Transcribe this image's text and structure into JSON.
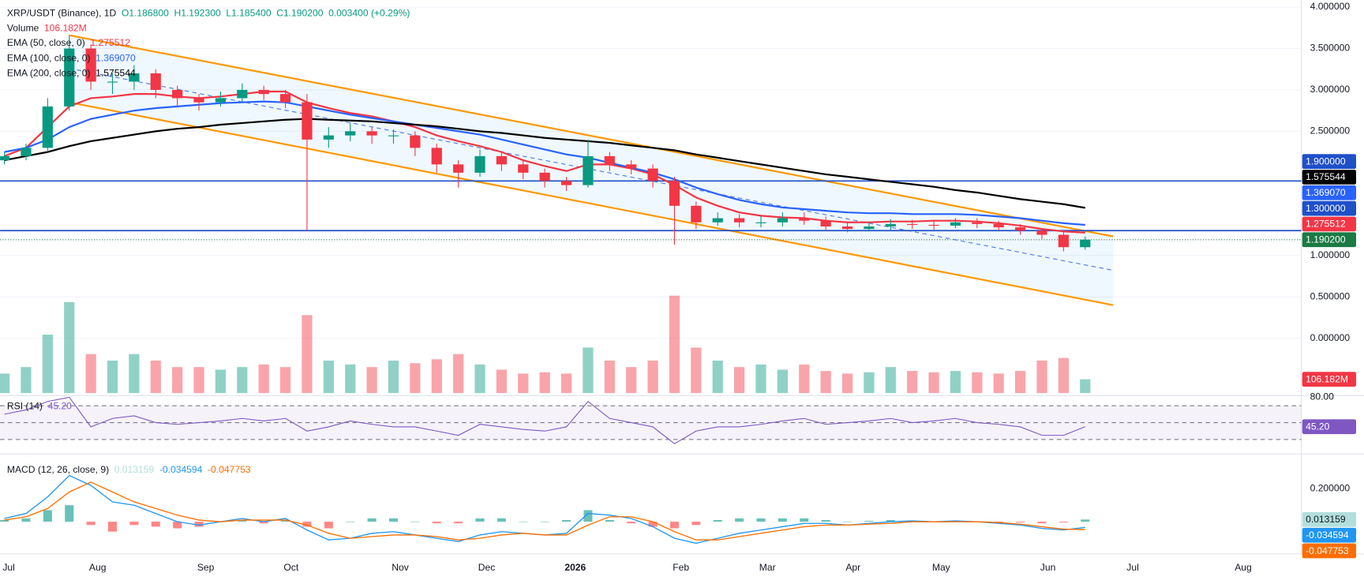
{
  "chart_data": [
    {
      "type": "candlestick",
      "title": "XRP/USDT (Binance), 1D",
      "ohlc_labels": [
        "O1.186800",
        "H1.192300",
        "L1.185400",
        "C1.190200"
      ],
      "change_label": "0.003400 (+0.29%)",
      "categories": [
        "Jul",
        null,
        null,
        null,
        "Aug",
        null,
        null,
        null,
        null,
        "Sep",
        null,
        null,
        null,
        "Oct",
        null,
        null,
        null,
        null,
        "Nov",
        null,
        null,
        null,
        "Dec",
        null,
        null,
        null,
        "2026",
        null,
        null,
        null,
        null,
        "Feb",
        null,
        null,
        null,
        "Mar",
        null,
        null,
        null,
        "Apr",
        null,
        null,
        null,
        "May",
        null,
        null,
        null,
        null,
        "Jun",
        null,
        null,
        null,
        "Jul",
        null,
        null,
        null,
        null,
        "Aug"
      ],
      "open": [
        2.15,
        2.2,
        2.3,
        2.8,
        3.5,
        3.1,
        3.1,
        3.2,
        3.0,
        2.9,
        2.85,
        2.9,
        3.0,
        2.95,
        2.85,
        2.4,
        2.45,
        2.5,
        2.45,
        2.45,
        2.3,
        2.1,
        2.0,
        2.2,
        2.1,
        2.0,
        1.9,
        1.85,
        2.2,
        2.1,
        2.05,
        1.9,
        1.6,
        1.4,
        1.45,
        1.4,
        1.4,
        1.45,
        1.42,
        1.35,
        1.32,
        1.35,
        1.38,
        1.37,
        1.36,
        1.4,
        1.38,
        1.34,
        1.3,
        1.25,
        1.1,
        null,
        null,
        null,
        null,
        null,
        null,
        null
      ],
      "high": [
        2.25,
        2.35,
        2.9,
        3.66,
        3.55,
        3.2,
        3.3,
        3.25,
        3.05,
        2.95,
        2.98,
        3.08,
        3.05,
        3.0,
        2.95,
        2.55,
        2.6,
        2.55,
        2.52,
        2.5,
        2.35,
        2.15,
        2.28,
        2.25,
        2.15,
        2.05,
        1.95,
        2.4,
        2.25,
        2.15,
        2.1,
        1.95,
        1.65,
        1.52,
        1.5,
        1.48,
        1.52,
        1.52,
        1.47,
        1.4,
        1.4,
        1.44,
        1.43,
        1.42,
        1.45,
        1.45,
        1.42,
        1.38,
        1.33,
        1.28,
        1.23,
        null,
        null,
        null,
        null,
        null,
        null,
        null
      ],
      "low": [
        2.1,
        2.15,
        2.25,
        2.75,
        3.0,
        2.95,
        3.0,
        2.9,
        2.8,
        2.75,
        2.8,
        2.85,
        2.88,
        2.78,
        1.3,
        2.3,
        2.38,
        2.35,
        2.35,
        2.2,
        2.0,
        1.82,
        1.95,
        2.02,
        1.92,
        1.82,
        1.78,
        1.82,
        2.02,
        1.98,
        1.82,
        1.13,
        1.32,
        1.36,
        1.34,
        1.34,
        1.35,
        1.37,
        1.3,
        1.28,
        1.29,
        1.31,
        1.32,
        1.31,
        1.33,
        1.33,
        1.3,
        1.25,
        1.2,
        1.05,
        1.07,
        null,
        null,
        null,
        null,
        null,
        null,
        null
      ],
      "close": [
        2.2,
        2.3,
        2.8,
        3.5,
        3.1,
        3.1,
        3.2,
        3.0,
        2.9,
        2.85,
        2.9,
        3.0,
        2.95,
        2.85,
        2.4,
        2.45,
        2.5,
        2.45,
        2.45,
        2.3,
        2.1,
        2.0,
        2.2,
        2.1,
        2.0,
        1.9,
        1.85,
        2.2,
        2.1,
        2.05,
        1.9,
        1.6,
        1.4,
        1.45,
        1.4,
        1.4,
        1.45,
        1.42,
        1.35,
        1.32,
        1.35,
        1.38,
        1.37,
        1.36,
        1.4,
        1.38,
        1.34,
        1.3,
        1.25,
        1.1,
        1.1902,
        null,
        null,
        null,
        null,
        null,
        null,
        null
      ],
      "last_label": "1.190200",
      "last_color": "#1b7a45",
      "up_color": "#089981",
      "down_color": "#f23645",
      "series": [
        {
          "name": "EMA (50, close, 0)",
          "color": "#f23645",
          "last_label": "1.275512",
          "values": [
            2.2,
            2.3,
            2.55,
            2.8,
            2.9,
            2.92,
            2.95,
            2.95,
            2.92,
            2.9,
            2.92,
            2.95,
            2.98,
            2.98,
            2.85,
            2.78,
            2.72,
            2.68,
            2.62,
            2.55,
            2.45,
            2.38,
            2.32,
            2.25,
            2.15,
            2.08,
            2.02,
            2.1,
            2.1,
            2.05,
            1.98,
            1.85,
            1.7,
            1.6,
            1.52,
            1.48,
            1.46,
            1.45,
            1.42,
            1.4,
            1.4,
            1.41,
            1.41,
            1.42,
            1.42,
            1.41,
            1.39,
            1.36,
            1.32,
            1.29,
            1.275512,
            null,
            null,
            null,
            null,
            null,
            null,
            null
          ]
        },
        {
          "name": "EMA (100, close, 0)",
          "color": "#2962ff",
          "last_label": "1.369070",
          "values": [
            2.25,
            2.3,
            2.4,
            2.55,
            2.65,
            2.7,
            2.75,
            2.78,
            2.8,
            2.82,
            2.84,
            2.85,
            2.86,
            2.85,
            2.8,
            2.75,
            2.7,
            2.66,
            2.62,
            2.58,
            2.54,
            2.5,
            2.46,
            2.4,
            2.34,
            2.28,
            2.22,
            2.18,
            2.12,
            2.06,
            2.0,
            1.92,
            1.82,
            1.74,
            1.67,
            1.62,
            1.58,
            1.56,
            1.54,
            1.52,
            1.51,
            1.51,
            1.5,
            1.5,
            1.5,
            1.49,
            1.47,
            1.45,
            1.42,
            1.39,
            1.36907,
            null,
            null,
            null,
            null,
            null,
            null,
            null
          ]
        },
        {
          "name": "EMA (200, close, 0)",
          "color": "#000000",
          "last_label": "1.575544",
          "values": [
            2.15,
            2.2,
            2.25,
            2.32,
            2.38,
            2.42,
            2.46,
            2.5,
            2.53,
            2.55,
            2.58,
            2.6,
            2.62,
            2.64,
            2.65,
            2.64,
            2.63,
            2.62,
            2.6,
            2.58,
            2.56,
            2.53,
            2.5,
            2.48,
            2.45,
            2.42,
            2.4,
            2.38,
            2.36,
            2.33,
            2.3,
            2.27,
            2.22,
            2.18,
            2.14,
            2.1,
            2.06,
            2.02,
            1.98,
            1.95,
            1.92,
            1.89,
            1.86,
            1.83,
            1.79,
            1.76,
            1.72,
            1.68,
            1.65,
            1.62,
            1.575544,
            null,
            null,
            null,
            null,
            null,
            null,
            null
          ]
        }
      ],
      "hlines": [
        {
          "value": 1.9,
          "label": "1.900000"
        },
        {
          "value": 1.3,
          "label": "1.300000"
        }
      ],
      "hline_color": "#1e50c8",
      "channel": {
        "upper": [
          3.66,
          1.23
        ],
        "middle": [
          3.26,
          0.82
        ],
        "lower": [
          2.85,
          0.4
        ],
        "color": "#ff9800",
        "middle_color": "#4a78e0"
      },
      "ylim": [
        -0.662,
        4.086
      ],
      "yticks": [
        {
          "value": 4,
          "label": "4.000000"
        },
        {
          "value": 3.5,
          "label": "3.500000"
        },
        {
          "value": 3,
          "label": "3.000000"
        },
        {
          "value": 2.5,
          "label": "2.500000"
        },
        {
          "value": 1,
          "label": "1.000000"
        },
        {
          "value": 0.5,
          "label": "0.500000"
        },
        {
          "value": 0,
          "label": "0.000000"
        }
      ]
    },
    {
      "type": "bar",
      "title": "Volume",
      "last_label": "106.182M",
      "ylim": [
        0,
        750
      ],
      "values": [
        150,
        200,
        450,
        700,
        300,
        250,
        300,
        250,
        200,
        200,
        180,
        200,
        220,
        200,
        600,
        250,
        220,
        200,
        250,
        230,
        260,
        300,
        220,
        180,
        150,
        160,
        150,
        350,
        250,
        200,
        250,
        750,
        350,
        250,
        200,
        220,
        180,
        220,
        170,
        150,
        160,
        200,
        170,
        160,
        170,
        160,
        150,
        170,
        250,
        270,
        106.182,
        null,
        null,
        null,
        null,
        null,
        null,
        null
      ]
    },
    {
      "type": "line",
      "title": "RSI (14)",
      "last_label": "45.20",
      "color": "#7e57c2",
      "ylim": [
        15,
        84
      ],
      "yticks": [
        {
          "value": 80,
          "label": "80.00"
        }
      ],
      "bands": [
        70,
        50,
        30
      ],
      "values": [
        60,
        65,
        75,
        80,
        45,
        55,
        58,
        50,
        48,
        50,
        52,
        55,
        52,
        55,
        40,
        45,
        52,
        48,
        45,
        45,
        40,
        35,
        48,
        45,
        42,
        40,
        45,
        75,
        55,
        50,
        45,
        25,
        40,
        45,
        45,
        48,
        52,
        55,
        48,
        50,
        52,
        55,
        50,
        52,
        55,
        50,
        48,
        45,
        35,
        35,
        45.2,
        null,
        null,
        null,
        null,
        null,
        null,
        null
      ]
    },
    {
      "type": "macd",
      "title": "MACD (12, 26, close, 9)",
      "ylim": [
        -0.195,
        0.384
      ],
      "yticks": [
        {
          "value": 0.2,
          "label": "0.200000"
        }
      ],
      "histogram": {
        "label": "0.013159",
        "color_up": "#26a69a",
        "color_down": "#ff5252",
        "label_color": "#b2dfdb",
        "values": [
          0.01,
          0.02,
          0.07,
          0.1,
          -0.02,
          -0.06,
          -0.02,
          -0.03,
          -0.04,
          -0.03,
          0,
          0.01,
          -0.01,
          0.01,
          -0.03,
          -0.04,
          0,
          0.02,
          0.02,
          0,
          -0.01,
          -0.01,
          0.02,
          0.02,
          0,
          0,
          0.01,
          0.07,
          0.01,
          -0.01,
          -0.03,
          -0.04,
          -0.02,
          0.01,
          0.02,
          0.02,
          0.02,
          0.02,
          0.01,
          0,
          0.005,
          0.01,
          0.005,
          0,
          0.005,
          0,
          -0.005,
          -0.005,
          -0.01,
          -0.005,
          0.013159,
          null,
          null,
          null,
          null,
          null,
          null,
          null
        ]
      },
      "series": [
        {
          "color": "#2196f3",
          "last_label": "-0.034594",
          "values": [
            0.02,
            0.05,
            0.15,
            0.28,
            0.22,
            0.12,
            0.1,
            0.05,
            0.0,
            -0.02,
            0.0,
            0.02,
            0.0,
            0.02,
            -0.05,
            -0.11,
            -0.1,
            -0.07,
            -0.06,
            -0.08,
            -0.1,
            -0.12,
            -0.08,
            -0.06,
            -0.07,
            -0.08,
            -0.07,
            0.05,
            0.04,
            0.02,
            -0.03,
            -0.1,
            -0.13,
            -0.1,
            -0.07,
            -0.05,
            -0.03,
            -0.01,
            -0.01,
            -0.02,
            -0.01,
            0.0,
            0.005,
            0.0,
            0.005,
            0.0,
            -0.01,
            -0.02,
            -0.04,
            -0.05,
            -0.034594,
            null,
            null,
            null,
            null,
            null,
            null,
            null
          ]
        },
        {
          "color": "#ff6d00",
          "last_label": "-0.047753",
          "values": [
            0.01,
            0.03,
            0.08,
            0.18,
            0.24,
            0.18,
            0.12,
            0.08,
            0.04,
            0.01,
            0.0,
            0.01,
            0.01,
            0.01,
            -0.02,
            -0.07,
            -0.1,
            -0.09,
            -0.08,
            -0.08,
            -0.09,
            -0.11,
            -0.1,
            -0.08,
            -0.07,
            -0.08,
            -0.08,
            -0.02,
            0.03,
            0.03,
            0.0,
            -0.06,
            -0.11,
            -0.11,
            -0.09,
            -0.07,
            -0.05,
            -0.03,
            -0.02,
            -0.02,
            -0.015,
            -0.01,
            0.0,
            0.0,
            0.0,
            0.0,
            -0.005,
            -0.015,
            -0.03,
            -0.045,
            -0.047753,
            null,
            null,
            null,
            null,
            null,
            null,
            null
          ]
        }
      ]
    }
  ]
}
